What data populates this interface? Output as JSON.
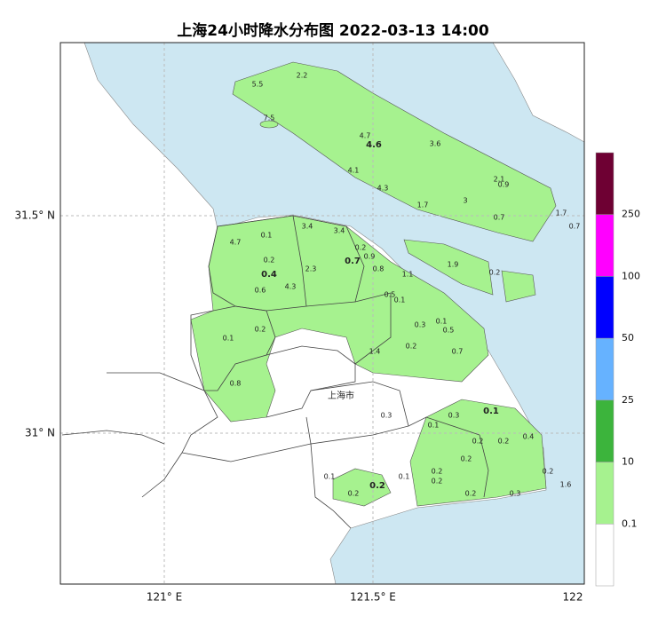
{
  "title": "上海24小时降水分布图 2022-03-13 14:00",
  "axes": {
    "y_labels": [
      "31.5° N",
      "31° N"
    ],
    "x_labels": [
      "121° E",
      "121.5° E",
      "122"
    ]
  },
  "place_label": "上海市",
  "legend": {
    "labels": [
      250,
      100,
      50,
      25,
      10,
      0.1
    ],
    "colors": [
      "#6e0033",
      "#ff00ff",
      "#0000ff",
      "#66b2ff",
      "#3cb43c",
      "#a6f28f",
      "#ffffff"
    ]
  },
  "sea_color": "#cde7f2",
  "stations": [
    {
      "value": 5.5,
      "bold": false
    },
    {
      "value": 2.2,
      "bold": false
    },
    {
      "value": 7.5,
      "bold": false
    },
    {
      "value": 4.7,
      "bold": false
    },
    {
      "value": 4.6,
      "bold": true
    },
    {
      "value": 3.6,
      "bold": false
    },
    {
      "value": 4.1,
      "bold": false
    },
    {
      "value": 4.3,
      "bold": false
    },
    {
      "value": 2.1,
      "bold": false
    },
    {
      "value": 0.9,
      "bold": false
    },
    {
      "value": 1.7,
      "bold": false
    },
    {
      "value": 3.0,
      "bold": false
    },
    {
      "value": 0.7,
      "bold": false
    },
    {
      "value": 1.7,
      "bold": false
    },
    {
      "value": 0.7,
      "bold": false
    },
    {
      "value": 4.7,
      "bold": false
    },
    {
      "value": 0.1,
      "bold": false
    },
    {
      "value": 3.4,
      "bold": false
    },
    {
      "value": 3.4,
      "bold": false
    },
    {
      "value": 0.2,
      "bold": false
    },
    {
      "value": 0.9,
      "bold": false
    },
    {
      "value": 0.7,
      "bold": true
    },
    {
      "value": 0.2,
      "bold": false
    },
    {
      "value": 2.3,
      "bold": false
    },
    {
      "value": 0.8,
      "bold": false
    },
    {
      "value": 1.1,
      "bold": false
    },
    {
      "value": 0.4,
      "bold": true
    },
    {
      "value": 1.9,
      "bold": false
    },
    {
      "value": 0.2,
      "bold": false
    },
    {
      "value": 4.3,
      "bold": false
    },
    {
      "value": 0.6,
      "bold": false
    },
    {
      "value": 0.5,
      "bold": false
    },
    {
      "value": 0.1,
      "bold": false
    },
    {
      "value": 0.3,
      "bold": false
    },
    {
      "value": 0.1,
      "bold": false
    },
    {
      "value": 0.5,
      "bold": false
    },
    {
      "value": 0.1,
      "bold": false
    },
    {
      "value": 0.2,
      "bold": false
    },
    {
      "value": 0.2,
      "bold": false
    },
    {
      "value": 1.4,
      "bold": false
    },
    {
      "value": 0.7,
      "bold": false
    },
    {
      "value": 0.8,
      "bold": false
    },
    {
      "value": 0.3,
      "bold": false
    },
    {
      "value": 0.1,
      "bold": true
    },
    {
      "value": 0.3,
      "bold": false
    },
    {
      "value": 0.1,
      "bold": false
    },
    {
      "value": 0.4,
      "bold": false
    },
    {
      "value": 0.2,
      "bold": false
    },
    {
      "value": 0.2,
      "bold": false
    },
    {
      "value": 0.2,
      "bold": false
    },
    {
      "value": 0.2,
      "bold": false
    },
    {
      "value": 0.2,
      "bold": false
    },
    {
      "value": 0.1,
      "bold": false
    },
    {
      "value": 0.2,
      "bold": true
    },
    {
      "value": 0.1,
      "bold": false
    },
    {
      "value": 0.2,
      "bold": false
    },
    {
      "value": 0.2,
      "bold": false
    },
    {
      "value": 1.6,
      "bold": false
    },
    {
      "value": 0.2,
      "bold": false
    },
    {
      "value": 0.3,
      "bold": false
    }
  ]
}
